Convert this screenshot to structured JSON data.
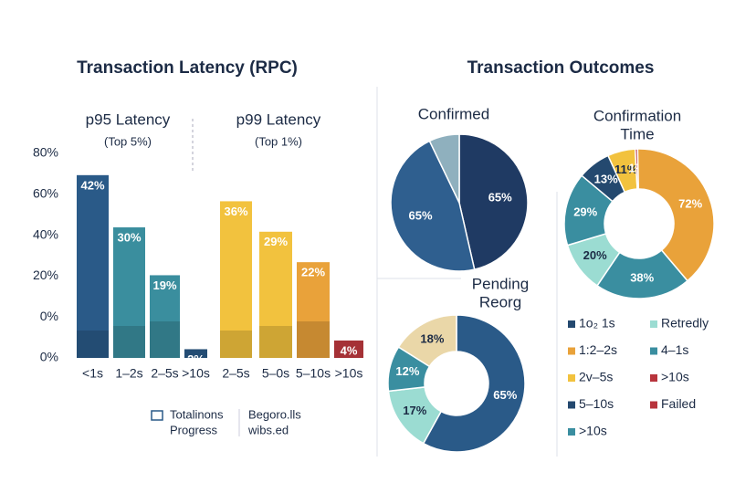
{
  "chart_data": [
    {
      "type": "bar",
      "title": "Transaction Latency (RPC)",
      "y_axis_labels": [
        "80%",
        "60%",
        "40%",
        "20%",
        "0%",
        "0%"
      ],
      "ylim": [
        0,
        47
      ],
      "groups": [
        {
          "title": "p95 Latency",
          "subtitle": "(Top 5%)",
          "categories": [
            "<1s",
            "1–2s",
            "2–5s",
            ">10s"
          ],
          "values": [
            42,
            30,
            19,
            2
          ],
          "value_labels": [
            "42%",
            "30%",
            "19%",
            "2%"
          ],
          "colors": [
            "#2a5a88",
            "#3a8e9e",
            "#3a8e9e",
            "#2a5a88"
          ]
        },
        {
          "title": "p99 Latency",
          "subtitle": "(Top 1%)",
          "categories": [
            "2–5s",
            "5–0s",
            "5–10s",
            ">10s"
          ],
          "values": [
            36,
            29,
            22,
            4
          ],
          "value_labels": [
            "36%",
            "29%",
            "22%",
            "4%"
          ],
          "colors": [
            "#f2c23e",
            "#f2c23e",
            "#e9a23a",
            "#c23a40"
          ]
        }
      ],
      "notes": [
        "Totalinons",
        "Progress",
        "Begoro.lls",
        "wibs.ed"
      ]
    },
    {
      "type": "pie",
      "title_lines": [
        "Confirmed"
      ],
      "values": [
        65,
        65,
        10
      ],
      "value_labels": [
        "65%",
        "65%",
        null
      ],
      "colors": [
        "#1f3a63",
        "#2f5f8f",
        "#8fb0be"
      ]
    },
    {
      "type": "donut",
      "title_lines": [
        "Confirmation",
        "Time"
      ],
      "values": [
        11,
        1,
        72,
        38,
        20,
        29,
        13
      ],
      "value_labels": [
        "11%",
        "1%",
        "72%",
        "38%",
        "20%",
        "29%",
        "13%"
      ],
      "colors": [
        "#f2c23e",
        "#b8343c",
        "#e9a23a",
        "#3a8ea0",
        "#9bdcd2",
        "#3a8ea0",
        "#24496f"
      ]
    },
    {
      "type": "donut",
      "title_lines": [
        "Pending",
        "Reorg"
      ],
      "values": [
        65,
        17,
        12,
        18
      ],
      "value_labels": [
        "65%",
        "17%",
        "12%",
        "18%"
      ],
      "colors": [
        "#2a5a88",
        "#9bdcd2",
        "#3a8ea0",
        "#ead7a8"
      ]
    }
  ],
  "outcomes_title": "Transaction Outcomes",
  "outcomes_legend": [
    [
      {
        "name": "1o₂ 1s",
        "color": "#24496f"
      },
      {
        "name": "1:2–2s",
        "color": "#e9a23a"
      },
      {
        "name": "2v–5s",
        "color": "#f2c23e"
      },
      {
        "name": "5–10s",
        "color": "#24496f"
      },
      {
        "name": ">10s",
        "color": "#3a8ea0"
      }
    ],
    [
      {
        "name": "Retredly",
        "color": "#9bdcd2"
      },
      {
        "name": "4–1s",
        "color": "#3a8ea0"
      },
      {
        "name": ">10s",
        "color": "#b8343c"
      },
      {
        "name": "Failed",
        "color": "#b8343c"
      }
    ]
  ]
}
